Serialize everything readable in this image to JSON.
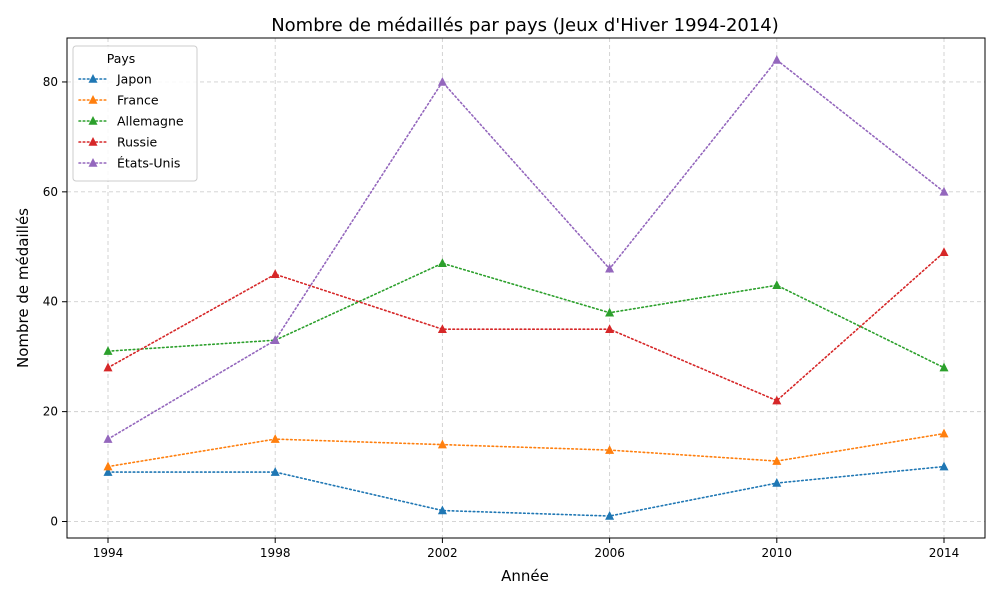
{
  "chart_data": {
    "type": "line",
    "title": "Nombre de médaillés par pays (Jeux d'Hiver 1994-2014)",
    "xlabel": "Année",
    "ylabel": "Nombre de médaillés",
    "x": [
      1994,
      1998,
      2002,
      2006,
      2010,
      2014
    ],
    "xticks": [
      "1994",
      "1998",
      "2002",
      "2006",
      "2010",
      "2014"
    ],
    "yticks": [
      "0",
      "20",
      "40",
      "60",
      "80"
    ],
    "ylim": [
      -3,
      88
    ],
    "grid": true,
    "legend": {
      "title": "Pays",
      "placement": "top-left"
    },
    "series": [
      {
        "name": "Japon",
        "color": "#1f77b4",
        "values": [
          9,
          9,
          2,
          1,
          7,
          10
        ]
      },
      {
        "name": "France",
        "color": "#ff7f0e",
        "values": [
          10,
          15,
          14,
          13,
          11,
          16
        ]
      },
      {
        "name": "Allemagne",
        "color": "#2ca02c",
        "values": [
          31,
          33,
          47,
          38,
          43,
          28
        ]
      },
      {
        "name": "Russie",
        "color": "#d62728",
        "values": [
          28,
          45,
          35,
          35,
          22,
          49
        ]
      },
      {
        "name": "États-Unis",
        "color": "#9467bd",
        "values": [
          15,
          33,
          80,
          46,
          84,
          60
        ]
      }
    ]
  }
}
